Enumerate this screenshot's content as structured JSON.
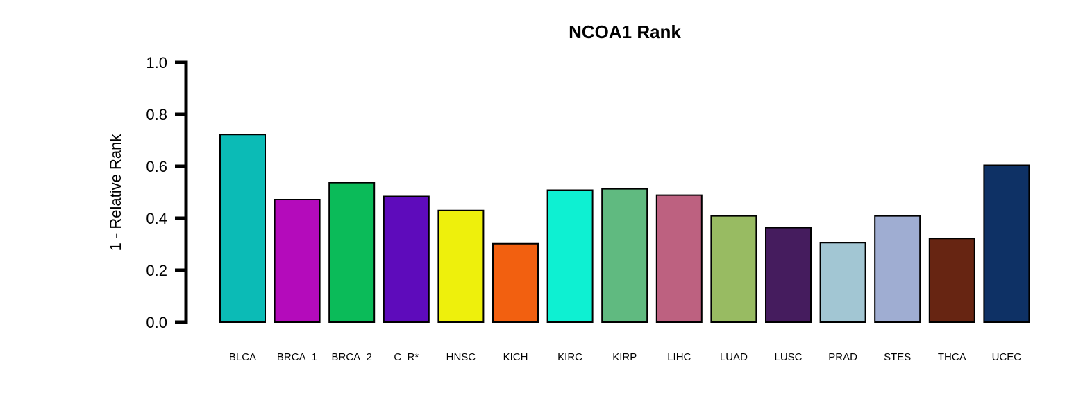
{
  "chart_data": {
    "type": "bar",
    "title": "NCOA1 Rank",
    "xlabel": "",
    "ylabel": "1 - Relative Rank",
    "ylim": [
      0,
      1
    ],
    "yticks": [
      "0.0",
      "0.2",
      "0.4",
      "0.6",
      "0.8",
      "1.0"
    ],
    "categories": [
      "BLCA",
      "BRCA_1",
      "BRCA_2",
      "C_R*",
      "HNSC",
      "KICH",
      "KIRC",
      "KIRP",
      "LIHC",
      "LUAD",
      "LUSC",
      "PRAD",
      "STES",
      "THCA",
      "UCEC"
    ],
    "values": [
      0.722,
      0.472,
      0.537,
      0.484,
      0.43,
      0.302,
      0.508,
      0.513,
      0.489,
      0.409,
      0.364,
      0.306,
      0.409,
      0.322,
      0.604
    ],
    "colors": [
      "#0bbbb6",
      "#b40bbb",
      "#0bbb59",
      "#5e0bbb",
      "#eef00c",
      "#f26010",
      "#0ef0d2",
      "#60ba80",
      "#bd6180",
      "#98bb62",
      "#451c5e",
      "#a2c6d3",
      "#9fadd2",
      "#672512",
      "#0e3165"
    ],
    "grid": false,
    "legend": "none"
  }
}
